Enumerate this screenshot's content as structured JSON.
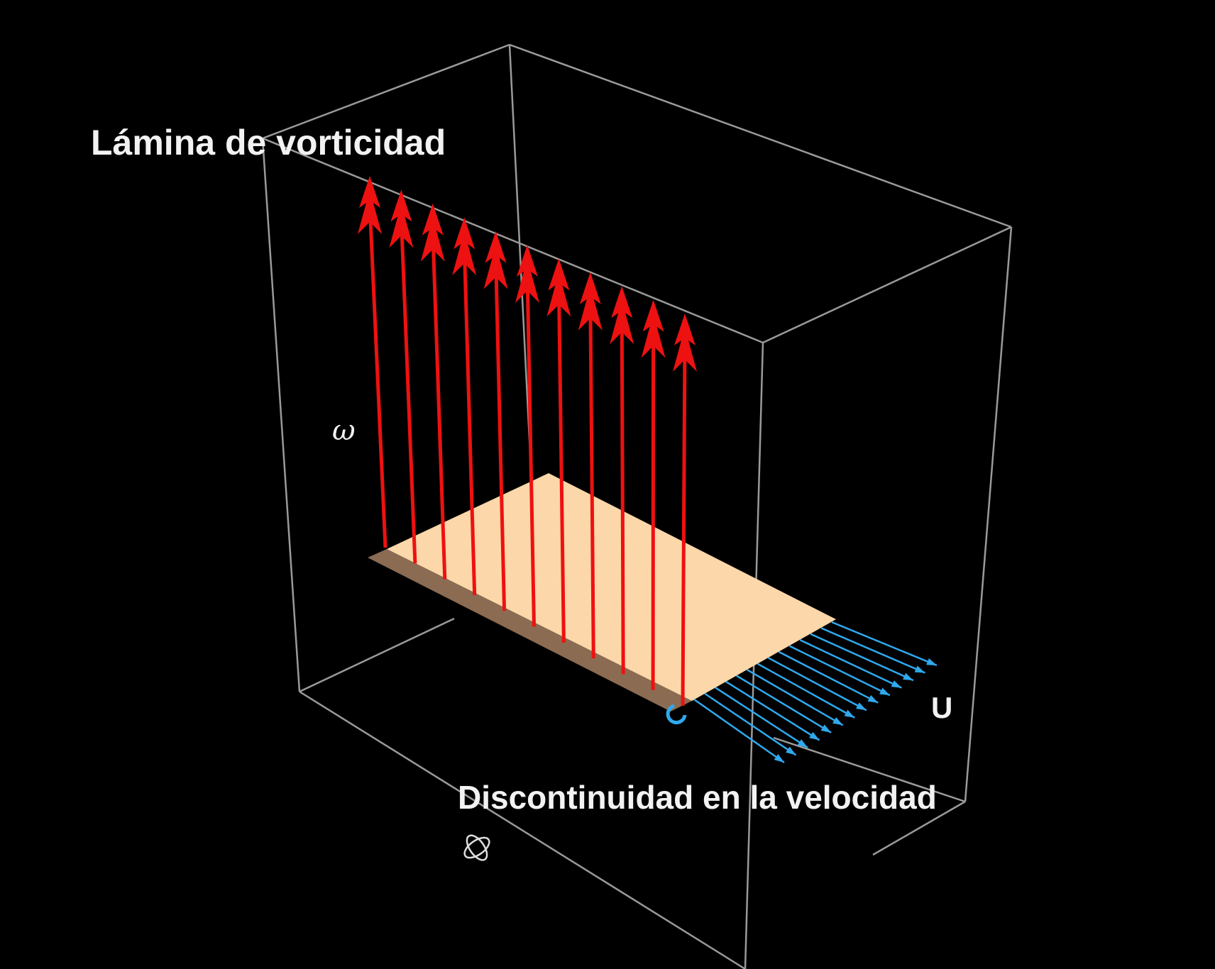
{
  "labels": {
    "title": "Lámina de vorticidad",
    "omega": "ω",
    "velocity_symbol": "U",
    "bottom": "Discontinuidad en la velocidad"
  },
  "colors": {
    "background": "#000000",
    "box_edges": "#9a9a9a",
    "vorticity_arrows": "#ee1111",
    "velocity_arrows": "#2fa9ee",
    "sheet_top": "#fcd7a9",
    "sheet_edge": "#8b6b52",
    "text": "#f2f2f2"
  },
  "icons": {
    "rotate": "rotate-3d-icon"
  }
}
